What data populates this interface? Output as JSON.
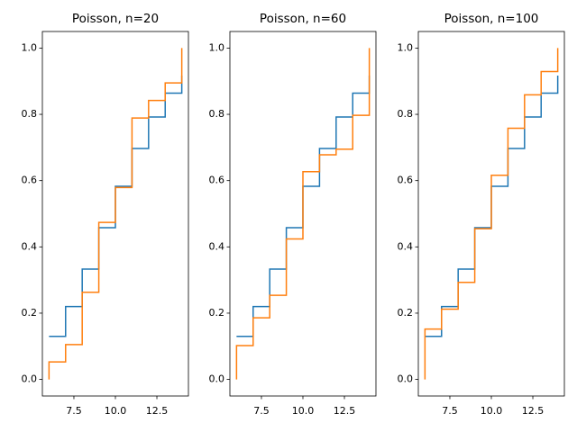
{
  "chart_data": [
    {
      "type": "line",
      "title": "Poisson, n=20",
      "xlim": [
        5.6,
        14.4
      ],
      "xticks": [
        7.5,
        {
          "value": 10,
          "label": "10.0"
        },
        12.5
      ],
      "ylim": [
        -0.05,
        1.05
      ],
      "yticks": [
        {
          "value": 0,
          "label": "0.0"
        },
        {
          "value": 0.2,
          "label": "0.2"
        },
        {
          "value": 0.4,
          "label": "0.4"
        },
        {
          "value": 0.6,
          "label": "0.6"
        },
        {
          "value": 0.8,
          "label": "0.8"
        },
        {
          "value": 1,
          "label": "1.0"
        }
      ],
      "step": "post",
      "series": [
        {
          "color": "#1f77b4",
          "x": [
            6,
            7,
            8,
            9,
            10,
            11,
            12,
            13,
            14
          ],
          "values": [
            0.13,
            0.22,
            0.333,
            0.458,
            0.583,
            0.697,
            0.792,
            0.864,
            0.917
          ]
        },
        {
          "color": "#ff7f0e",
          "x": [
            6,
            6,
            7,
            8,
            9,
            10,
            11,
            12,
            13,
            14
          ],
          "values": [
            0,
            0.053,
            0.105,
            0.263,
            0.474,
            0.579,
            0.789,
            0.842,
            0.895,
            1.0
          ]
        }
      ]
    },
    {
      "type": "line",
      "title": "Poisson, n=60",
      "xlim": [
        5.6,
        14.4
      ],
      "xticks": [
        7.5,
        {
          "value": 10,
          "label": "10.0"
        },
        12.5
      ],
      "ylim": [
        -0.05,
        1.05
      ],
      "yticks": [
        {
          "value": 0,
          "label": "0.0"
        },
        {
          "value": 0.2,
          "label": "0.2"
        },
        {
          "value": 0.4,
          "label": "0.4"
        },
        {
          "value": 0.6,
          "label": "0.6"
        },
        {
          "value": 0.8,
          "label": "0.8"
        },
        {
          "value": 1,
          "label": "1.0"
        }
      ],
      "step": "post",
      "series": [
        {
          "color": "#1f77b4",
          "x": [
            6,
            7,
            8,
            9,
            10,
            11,
            12,
            13,
            14
          ],
          "values": [
            0.13,
            0.22,
            0.333,
            0.458,
            0.583,
            0.697,
            0.792,
            0.864,
            0.917
          ]
        },
        {
          "color": "#ff7f0e",
          "x": [
            6,
            6,
            7,
            8,
            9,
            10,
            11,
            12,
            13,
            14
          ],
          "values": [
            0,
            0.102,
            0.186,
            0.254,
            0.424,
            0.627,
            0.678,
            0.695,
            0.797,
            1.0
          ]
        }
      ]
    },
    {
      "type": "line",
      "title": "Poisson, n=100",
      "xlim": [
        5.6,
        14.4
      ],
      "xticks": [
        7.5,
        {
          "value": 10,
          "label": "10.0"
        },
        12.5
      ],
      "ylim": [
        -0.05,
        1.05
      ],
      "yticks": [
        {
          "value": 0,
          "label": "0.0"
        },
        {
          "value": 0.2,
          "label": "0.2"
        },
        {
          "value": 0.4,
          "label": "0.4"
        },
        {
          "value": 0.6,
          "label": "0.6"
        },
        {
          "value": 0.8,
          "label": "0.8"
        },
        {
          "value": 1,
          "label": "1.0"
        }
      ],
      "step": "post",
      "series": [
        {
          "color": "#1f77b4",
          "x": [
            6,
            7,
            8,
            9,
            10,
            11,
            12,
            13,
            14
          ],
          "values": [
            0.13,
            0.22,
            0.333,
            0.458,
            0.583,
            0.697,
            0.792,
            0.864,
            0.917
          ]
        },
        {
          "color": "#ff7f0e",
          "x": [
            6,
            6,
            7,
            8,
            9,
            10,
            11,
            12,
            13,
            14
          ],
          "values": [
            0,
            0.152,
            0.212,
            0.293,
            0.455,
            0.616,
            0.758,
            0.859,
            0.929,
            1.0
          ]
        }
      ]
    }
  ]
}
